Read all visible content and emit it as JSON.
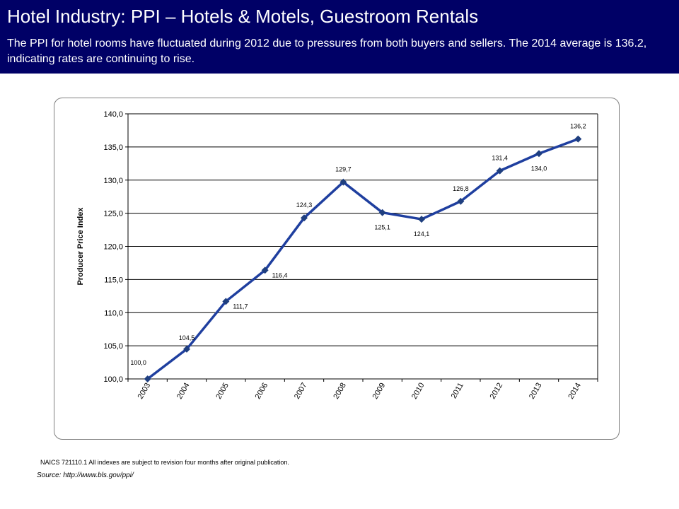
{
  "header": {
    "title": "Hotel Industry:  PPI – Hotels & Motels, Guestroom Rentals",
    "subtitle": "The PPI for hotel rooms have fluctuated during 2012 due to pressures from both buyers and sellers.  The 2014 average  is 136.2, indicating rates are continuing to rise."
  },
  "chart_data": {
    "type": "line",
    "title": "",
    "xlabel": "",
    "ylabel": "Producer Price Index",
    "categories": [
      "2003",
      "2004",
      "2005",
      "2006",
      "2007",
      "2008",
      "2009",
      "2010",
      "2011",
      "2012",
      "2013",
      "2014"
    ],
    "series": [
      {
        "values": [
          100.0,
          104.5,
          111.7,
          116.4,
          124.3,
          129.7,
          125.1,
          124.1,
          126.8,
          131.4,
          134.0,
          136.2
        ],
        "data_labels": [
          "100,0",
          "104,5",
          "111,7",
          "116,4",
          "124,3",
          "129,7",
          "125,1",
          "124,1",
          "126,8",
          "131,4",
          "134,0",
          "136,2"
        ],
        "color": "#1f3f9f",
        "marker": "diamond"
      }
    ],
    "ylim": [
      100,
      140
    ],
    "yticks": [
      100,
      105,
      110,
      115,
      120,
      125,
      130,
      135,
      140
    ],
    "ytick_labels": [
      "100,0",
      "105,0",
      "110,0",
      "115,0",
      "120,0",
      "125,0",
      "130,0",
      "135,0",
      "140,0"
    ],
    "grid": true,
    "legend": "none"
  },
  "footer": {
    "note": "NAICS 721110.1  All indexes are subject to revision four months after original publication.",
    "source": "Source:  http://www.bls.gov/ppi/"
  },
  "colors": {
    "header_bg": "#000066",
    "line": "#1f3f9f"
  }
}
